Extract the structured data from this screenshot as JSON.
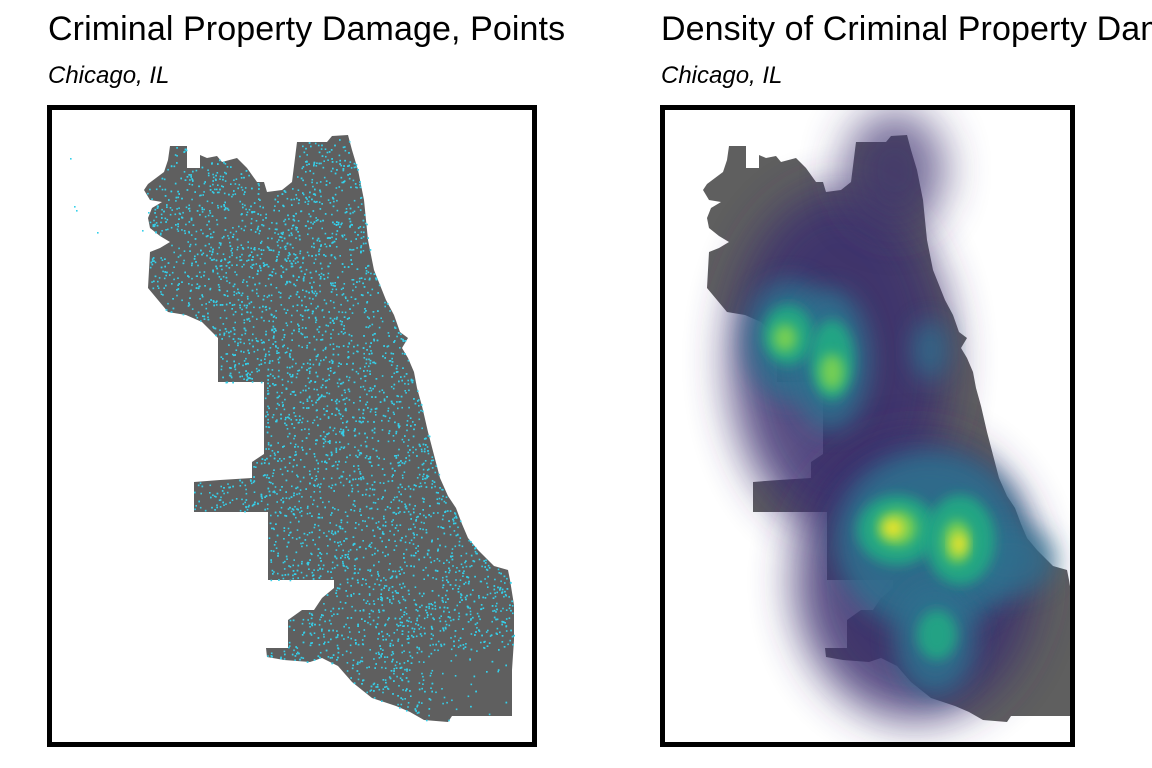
{
  "panels": [
    {
      "title": "Criminal Property Damage, Points",
      "subtitle": "Chicago, IL",
      "map_type": "points",
      "land_color": "#5f5f5f",
      "point_color": "#35d0ea"
    },
    {
      "title": "Density of Criminal Property Damage",
      "subtitle": "Chicago, IL",
      "map_type": "density",
      "land_color": "#5f5f5f",
      "density_colors": [
        "#3b2f6e",
        "#2f6f8e",
        "#22a884",
        "#7ad151",
        "#fde725"
      ]
    }
  ]
}
